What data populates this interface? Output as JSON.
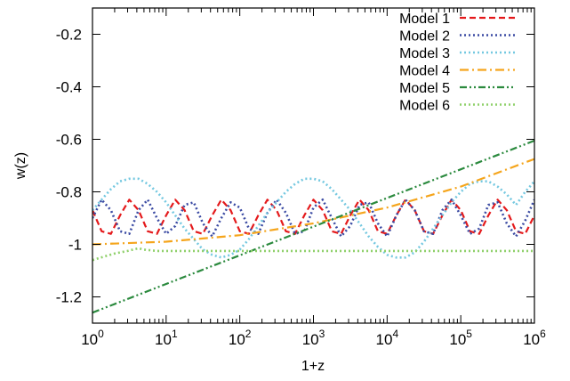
{
  "chart_data": {
    "type": "line",
    "title": "",
    "xlabel": "1+z",
    "ylabel": "w(z)",
    "xscale": "log",
    "xlim": [
      1,
      1000000
    ],
    "ylim": [
      -1.3,
      -0.1
    ],
    "x_ticks": [
      {
        "base": "10",
        "exp": "0",
        "value": 1
      },
      {
        "base": "10",
        "exp": "1",
        "value": 10
      },
      {
        "base": "10",
        "exp": "2",
        "value": 100
      },
      {
        "base": "10",
        "exp": "3",
        "value": 1000
      },
      {
        "base": "10",
        "exp": "4",
        "value": 10000
      },
      {
        "base": "10",
        "exp": "5",
        "value": 100000
      },
      {
        "base": "10",
        "exp": "6",
        "value": 1000000
      }
    ],
    "y_ticks": [
      {
        "label": "-0.2",
        "value": -0.2
      },
      {
        "label": "-0.4",
        "value": -0.4
      },
      {
        "label": "-0.6",
        "value": -0.6
      },
      {
        "label": "-0.8",
        "value": -0.8
      },
      {
        "label": "-1",
        "value": -1.0
      },
      {
        "label": "-1.2",
        "value": -1.2
      }
    ],
    "grid": false,
    "legend_position": "top-right",
    "series": [
      {
        "name": "Model 1",
        "color": "#e41a1c",
        "dash": "dashed",
        "x": [
          1,
          1.33,
          1.78,
          2.37,
          3.16,
          4.22,
          5.62,
          7.5,
          10,
          13.3,
          17.8,
          23.7,
          31.6,
          42.2,
          56.2,
          75,
          100,
          133,
          178,
          237,
          316,
          422,
          562,
          750,
          1000,
          1334,
          1778,
          2371,
          3162,
          4217,
          5623,
          7499,
          10000,
          13335,
          17783,
          23714,
          31623,
          42170,
          56234,
          74989,
          100000,
          133352,
          177828,
          237137,
          316228,
          421697,
          562341,
          749894,
          1000000
        ],
        "y": [
          -0.87,
          -0.95,
          -0.96,
          -0.89,
          -0.83,
          -0.87,
          -0.95,
          -0.96,
          -0.89,
          -0.83,
          -0.87,
          -0.95,
          -0.96,
          -0.89,
          -0.83,
          -0.87,
          -0.95,
          -0.96,
          -0.89,
          -0.83,
          -0.87,
          -0.95,
          -0.96,
          -0.89,
          -0.83,
          -0.87,
          -0.95,
          -0.96,
          -0.89,
          -0.83,
          -0.87,
          -0.95,
          -0.96,
          -0.89,
          -0.83,
          -0.87,
          -0.95,
          -0.96,
          -0.89,
          -0.83,
          -0.87,
          -0.95,
          -0.96,
          -0.89,
          -0.83,
          -0.87,
          -0.95,
          -0.96,
          -0.89
        ]
      },
      {
        "name": "Model 2",
        "color": "#3b4ba3",
        "dash": "dotted",
        "x": [
          1,
          1.33,
          1.78,
          2.37,
          3.16,
          4.22,
          5.62,
          7.5,
          10,
          13.3,
          17.8,
          23.7,
          31.6,
          42.2,
          56.2,
          75,
          100,
          133,
          178,
          237,
          316,
          422,
          562,
          750,
          1000,
          1334,
          1778,
          2371,
          3162,
          4217,
          5623,
          7499,
          10000,
          13335,
          17783,
          23714,
          31623,
          42170,
          56234,
          74989,
          100000,
          133352,
          177828,
          237137,
          316228,
          421697,
          562341,
          749894,
          1000000
        ],
        "y": [
          -0.9,
          -0.83,
          -0.87,
          -0.95,
          -0.96,
          -0.87,
          -0.83,
          -0.9,
          -0.96,
          -0.93,
          -0.85,
          -0.84,
          -0.92,
          -0.97,
          -0.9,
          -0.84,
          -0.86,
          -0.94,
          -0.96,
          -0.88,
          -0.83,
          -0.88,
          -0.96,
          -0.95,
          -0.86,
          -0.83,
          -0.9,
          -0.97,
          -0.93,
          -0.85,
          -0.84,
          -0.92,
          -0.97,
          -0.89,
          -0.83,
          -0.87,
          -0.95,
          -0.96,
          -0.87,
          -0.83,
          -0.89,
          -0.96,
          -0.94,
          -0.85,
          -0.84,
          -0.92,
          -0.97,
          -0.91,
          -0.83
        ]
      },
      {
        "name": "Model 3",
        "color": "#74c8e0",
        "dash": "dotted",
        "x": [
          1,
          1.33,
          1.78,
          2.37,
          3.16,
          4.22,
          5.62,
          7.5,
          10,
          13.3,
          17.8,
          23.7,
          31.6,
          42.2,
          56.2,
          75,
          100,
          133,
          178,
          237,
          316,
          422,
          562,
          750,
          1000,
          1334,
          1778,
          2371,
          3162,
          4217,
          5623,
          7499,
          10000,
          13335,
          17783,
          23714,
          31623,
          42170,
          56234,
          74989,
          100000,
          133352,
          177828,
          237137,
          316228,
          421697,
          562341,
          749894,
          1000000
        ],
        "y": [
          -0.87,
          -0.83,
          -0.79,
          -0.76,
          -0.75,
          -0.75,
          -0.77,
          -0.8,
          -0.84,
          -0.89,
          -0.94,
          -0.98,
          -1.02,
          -1.04,
          -1.05,
          -1.04,
          -1.02,
          -0.98,
          -0.93,
          -0.88,
          -0.84,
          -0.8,
          -0.77,
          -0.75,
          -0.75,
          -0.76,
          -0.79,
          -0.83,
          -0.87,
          -0.92,
          -0.97,
          -1.01,
          -1.04,
          -1.05,
          -1.05,
          -1.03,
          -0.99,
          -0.94,
          -0.89,
          -0.84,
          -0.8,
          -0.77,
          -0.76,
          -0.76,
          -0.78,
          -0.81,
          -0.85,
          -0.8,
          -0.76
        ]
      },
      {
        "name": "Model 4",
        "color": "#f5a51c",
        "dash": "dash-dot",
        "x": [
          1,
          10,
          100,
          1000,
          10000,
          100000,
          1000000
        ],
        "y": [
          -1.0,
          -0.99,
          -0.965,
          -0.92,
          -0.86,
          -0.78,
          -0.675
        ]
      },
      {
        "name": "Model 5",
        "color": "#2b8a3e",
        "dash": "dash-dot-dot",
        "x": [
          1,
          1000000
        ],
        "y": [
          -1.26,
          -0.605
        ]
      },
      {
        "name": "Model 6",
        "color": "#8fd06a",
        "dash": "dotted",
        "x": [
          1,
          1.5,
          2,
          3,
          4.22,
          5,
          7.5,
          10,
          100,
          1000,
          10000,
          100000,
          1000000
        ],
        "y": [
          -1.06,
          -1.045,
          -1.035,
          -1.025,
          -1.015,
          -1.02,
          -1.025,
          -1.025,
          -1.025,
          -1.025,
          -1.025,
          -1.025,
          -1.025
        ]
      }
    ]
  }
}
